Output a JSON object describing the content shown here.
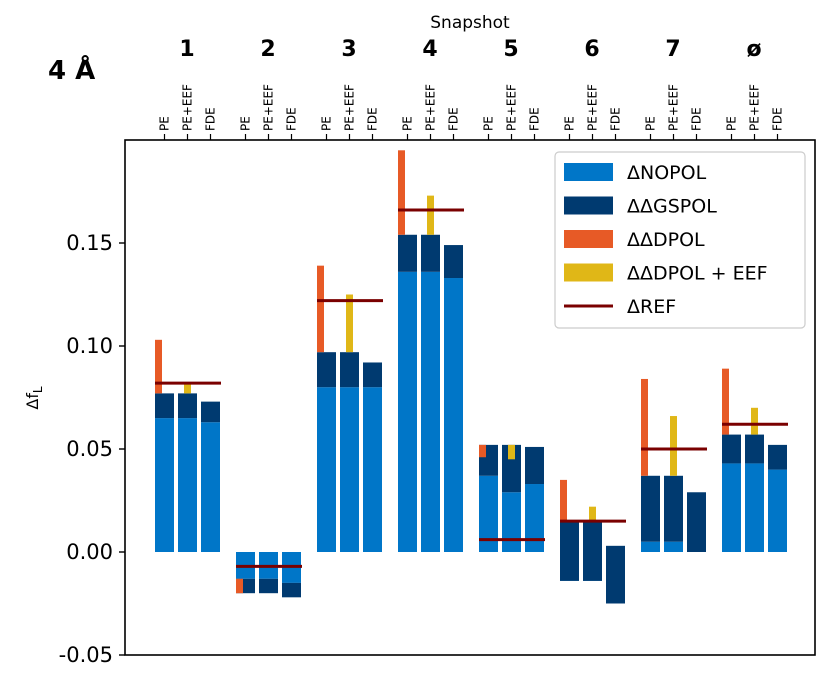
{
  "chart_data": {
    "type": "bar",
    "panel_label": "4 Å",
    "top_axis_label": "Snapshot",
    "ylabel_main": "Δf",
    "ylabel_sub": "L",
    "ylim": [
      -0.05,
      0.2
    ],
    "yticks": [
      -0.05,
      0.0,
      0.05,
      0.1,
      0.15
    ],
    "ytick_labels": [
      "-0.05",
      "0.00",
      "0.05",
      "0.10",
      "0.15"
    ],
    "grid": false,
    "legend_position": "top-right",
    "method_labels": [
      "PE",
      "PE+EEF",
      "FDE"
    ],
    "colors": {
      "nopol": "#0076c8",
      "gspol": "#003a70",
      "dpol": "#e75a26",
      "dpol_eef": "#e0b717",
      "ref": "#7a0000"
    },
    "legend": [
      {
        "key": "nopol",
        "label": "ΔNOPOL",
        "kind": "patch"
      },
      {
        "key": "gspol",
        "label": "ΔΔGSPOL",
        "kind": "patch"
      },
      {
        "key": "dpol",
        "label": "ΔΔDPOL",
        "kind": "patch"
      },
      {
        "key": "dpol_eef",
        "label": "ΔΔDPOL + EEF",
        "kind": "patch"
      },
      {
        "key": "ref",
        "label": "ΔREF",
        "kind": "line"
      }
    ],
    "snapshots": [
      {
        "label": "1",
        "ref": 0.082,
        "PE": {
          "nopol": 0.065,
          "gspol": 0.012,
          "dpol": 0.026
        },
        "PE_EEF": {
          "nopol": 0.065,
          "gspol": 0.012,
          "dpol_eef": 0.005
        },
        "FDE": {
          "nopol": 0.063,
          "gspol": 0.01
        }
      },
      {
        "label": "2",
        "ref": -0.007,
        "PE": {
          "nopol": -0.013,
          "gspol": -0.007,
          "dpol": 0.007
        },
        "PE_EEF": {
          "nopol": -0.013,
          "gspol": -0.007,
          "dpol_eef": 0.0
        },
        "FDE": {
          "nopol": -0.015,
          "gspol": -0.007
        }
      },
      {
        "label": "3",
        "ref": 0.122,
        "PE": {
          "nopol": 0.08,
          "gspol": 0.017,
          "dpol": 0.042
        },
        "PE_EEF": {
          "nopol": 0.08,
          "gspol": 0.017,
          "dpol_eef": 0.028
        },
        "FDE": {
          "nopol": 0.08,
          "gspol": 0.012
        }
      },
      {
        "label": "4",
        "ref": 0.166,
        "PE": {
          "nopol": 0.136,
          "gspol": 0.018,
          "dpol": 0.041
        },
        "PE_EEF": {
          "nopol": 0.136,
          "gspol": 0.018,
          "dpol_eef": 0.019
        },
        "FDE": {
          "nopol": 0.133,
          "gspol": 0.016
        }
      },
      {
        "label": "5",
        "ref": 0.006,
        "PE": {
          "nopol": 0.037,
          "gspol": 0.015,
          "dpol": -0.006
        },
        "PE_EEF": {
          "nopol": 0.029,
          "gspol": 0.023,
          "dpol_eef": -0.007
        },
        "FDE": {
          "nopol": 0.033,
          "gspol": 0.018
        }
      },
      {
        "label": "6",
        "ref": 0.015,
        "PE": {
          "nopol": -0.014,
          "gspol": 0.029,
          "dpol": 0.02
        },
        "PE_EEF": {
          "nopol": -0.014,
          "gspol": 0.029,
          "dpol_eef": 0.007
        },
        "FDE": {
          "nopol": -0.025,
          "gspol": 0.028
        }
      },
      {
        "label": "7",
        "ref": 0.05,
        "PE": {
          "nopol": 0.005,
          "gspol": 0.032,
          "dpol": 0.047
        },
        "PE_EEF": {
          "nopol": 0.005,
          "gspol": 0.032,
          "dpol_eef": 0.029
        },
        "FDE": {
          "nopol": 0.0,
          "gspol": 0.029
        }
      },
      {
        "label": "ø",
        "ref": 0.062,
        "PE": {
          "nopol": 0.043,
          "gspol": 0.014,
          "dpol": 0.032
        },
        "PE_EEF": {
          "nopol": 0.043,
          "gspol": 0.014,
          "dpol_eef": 0.013
        },
        "FDE": {
          "nopol": 0.04,
          "gspol": 0.012
        }
      }
    ]
  }
}
